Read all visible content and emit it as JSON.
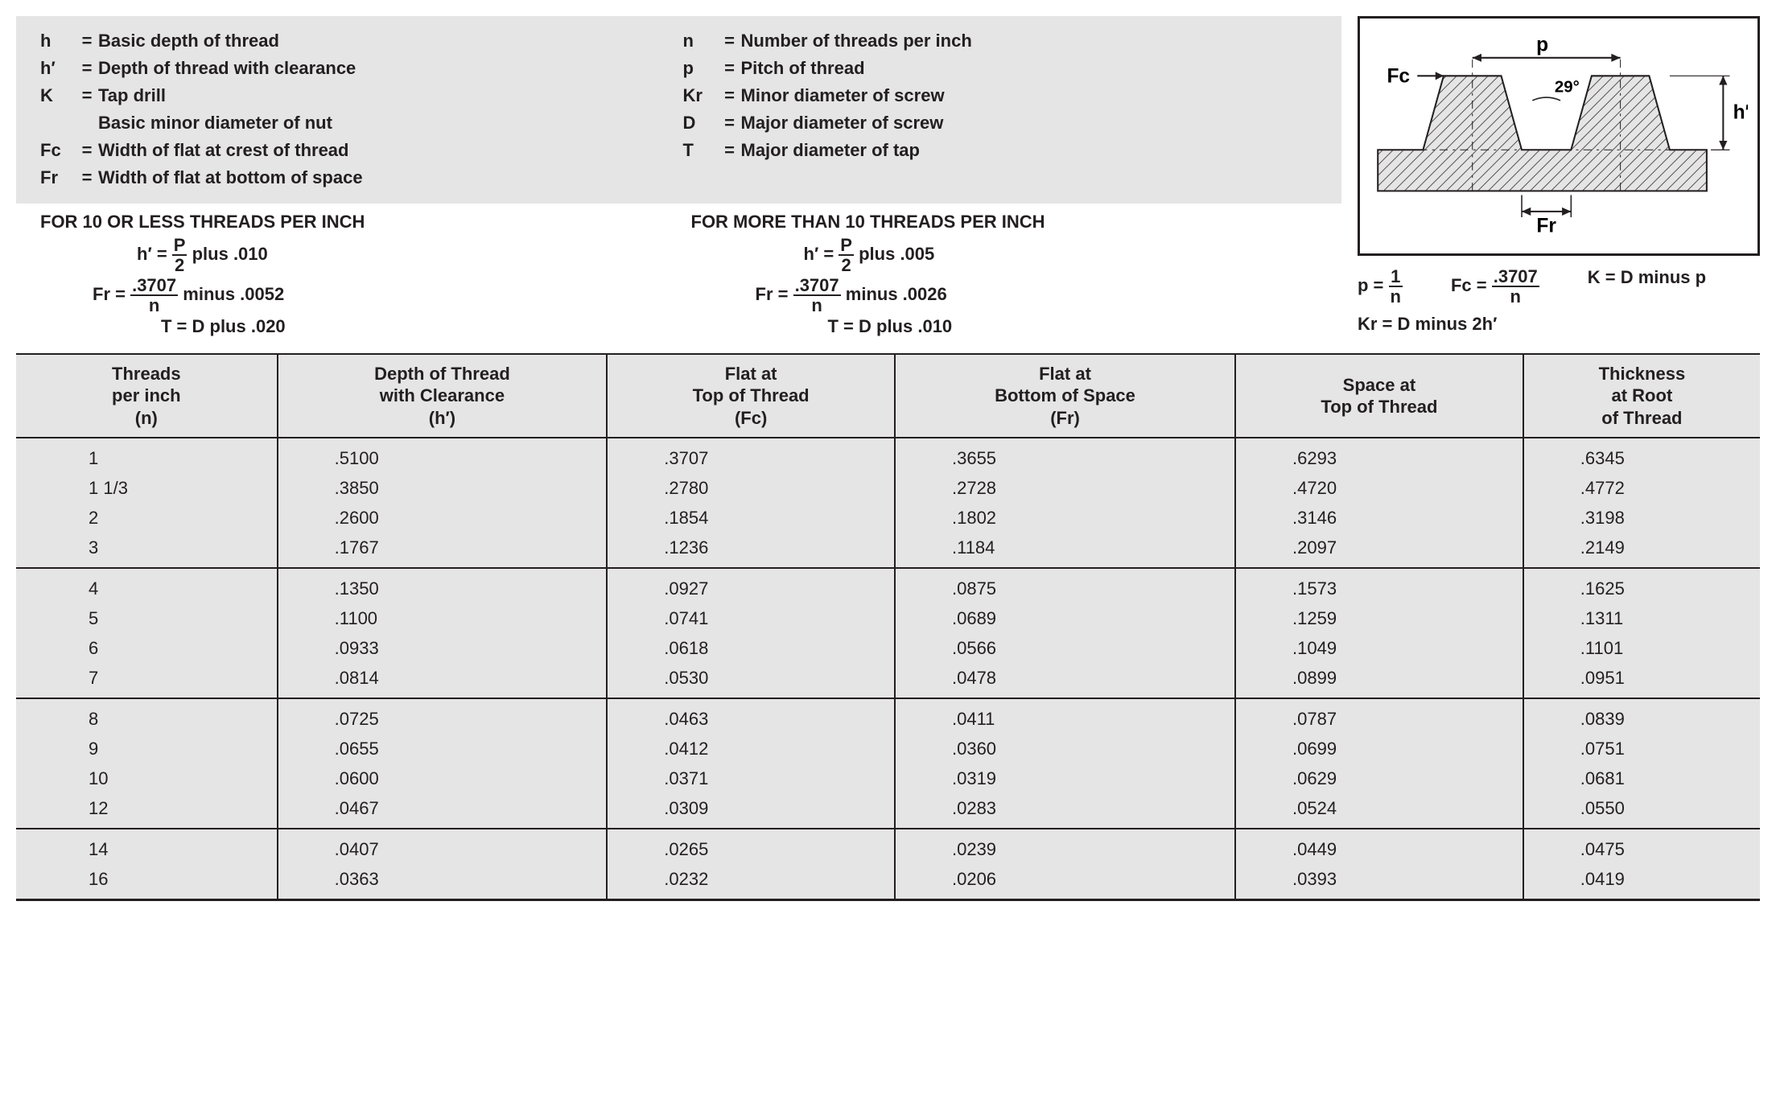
{
  "defs": {
    "left": [
      {
        "sym": "h",
        "desc": "Basic depth of thread"
      },
      {
        "sym": "h′",
        "desc": "Depth of thread with clearance"
      },
      {
        "sym": "K",
        "desc": "Tap drill",
        "sub": "Basic minor diameter of nut"
      },
      {
        "sym": "Fc",
        "desc": "Width of flat at crest of thread"
      },
      {
        "sym": "Fr",
        "desc": "Width of flat at bottom of space"
      }
    ],
    "right": [
      {
        "sym": "n",
        "desc": "Number of threads per inch"
      },
      {
        "sym": "p",
        "desc": "Pitch of thread"
      },
      {
        "sym": "Kr",
        "desc": "Minor diameter of screw"
      },
      {
        "sym": "D",
        "desc": "Major diameter of screw"
      },
      {
        "sym": "T",
        "desc": "Major diameter of tap"
      }
    ]
  },
  "formulas": {
    "left": {
      "heading": "FOR 10 OR LESS THREADS PER INCH",
      "h_num": "P",
      "h_den": "2",
      "h_suffix": "plus .010",
      "fr_num": ".3707",
      "fr_den": "n",
      "fr_suffix": "minus .0052",
      "t": "T = D plus .020"
    },
    "right": {
      "heading": "FOR MORE THAN 10 THREADS PER INCH",
      "h_num": "P",
      "h_den": "2",
      "h_suffix": "plus .005",
      "fr_num": ".3707",
      "fr_den": "n",
      "fr_suffix": "minus .0026",
      "t": "T = D plus .010"
    }
  },
  "diagram": {
    "labels": {
      "p": "p",
      "angle": "29°",
      "fc": "Fc",
      "fr": "Fr",
      "hprime": "h′"
    },
    "hatch_color": "#231f20",
    "fill_color": "#e5e5e5",
    "below": {
      "p_num": "1",
      "p_den": "n",
      "fc_num": ".3707",
      "fc_den": "n",
      "k": "K = D minus p",
      "kr": "Kr = D minus 2h′"
    }
  },
  "table": {
    "columns": [
      "Threads\nper inch\n(n)",
      "Depth of Thread\nwith Clearance\n(h′)",
      "Flat at\nTop of Thread\n(Fc)",
      "Flat at\nBottom of Space\n(Fr)",
      "Space at\nTop of Thread",
      "Thickness\nat Root\nof Thread"
    ],
    "groups": [
      [
        [
          "1",
          ".5100",
          ".3707",
          ".3655",
          ".6293",
          ".6345"
        ],
        [
          "1 1/3",
          ".3850",
          ".2780",
          ".2728",
          ".4720",
          ".4772"
        ],
        [
          "2",
          ".2600",
          ".1854",
          ".1802",
          ".3146",
          ".3198"
        ],
        [
          "3",
          ".1767",
          ".1236",
          ".1184",
          ".2097",
          ".2149"
        ]
      ],
      [
        [
          "4",
          ".1350",
          ".0927",
          ".0875",
          ".1573",
          ".1625"
        ],
        [
          "5",
          ".1100",
          ".0741",
          ".0689",
          ".1259",
          ".1311"
        ],
        [
          "6",
          ".0933",
          ".0618",
          ".0566",
          ".1049",
          ".1101"
        ],
        [
          "7",
          ".0814",
          ".0530",
          ".0478",
          ".0899",
          ".0951"
        ]
      ],
      [
        [
          "8",
          ".0725",
          ".0463",
          ".0411",
          ".0787",
          ".0839"
        ],
        [
          "9",
          ".0655",
          ".0412",
          ".0360",
          ".0699",
          ".0751"
        ],
        [
          "10",
          ".0600",
          ".0371",
          ".0319",
          ".0629",
          ".0681"
        ],
        [
          "12",
          ".0467",
          ".0309",
          ".0283",
          ".0524",
          ".0550"
        ]
      ],
      [
        [
          "14",
          ".0407",
          ".0265",
          ".0239",
          ".0449",
          ".0475"
        ],
        [
          "16",
          ".0363",
          ".0232",
          ".0206",
          ".0393",
          ".0419"
        ]
      ]
    ]
  }
}
